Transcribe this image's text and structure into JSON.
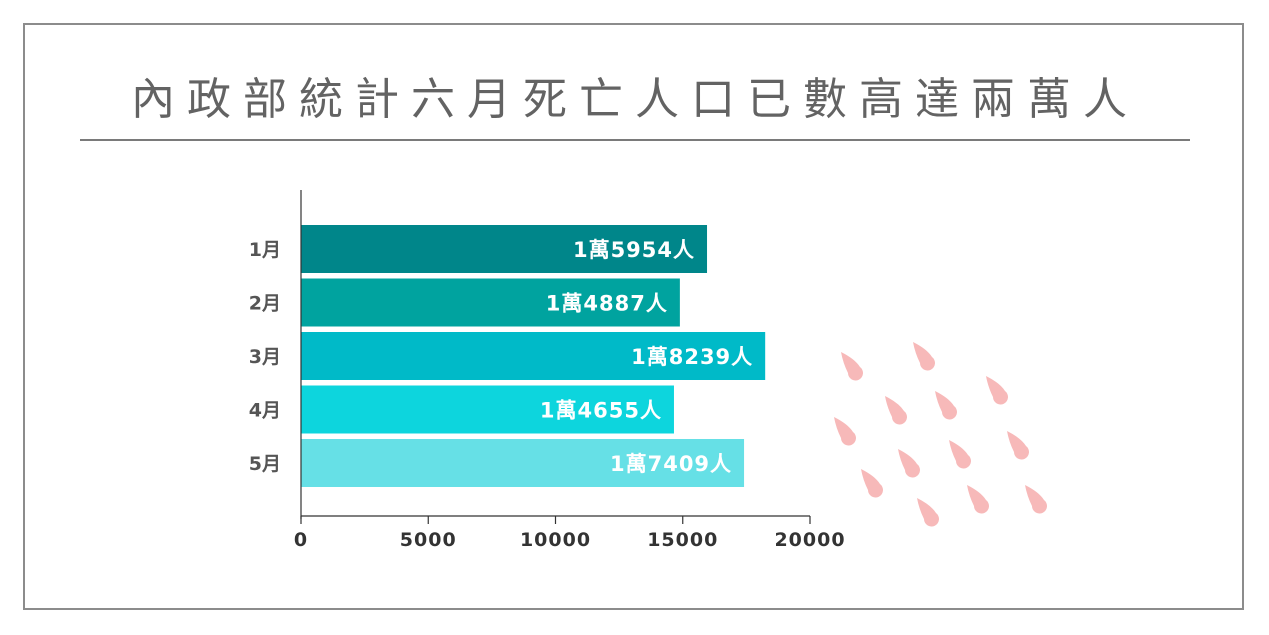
{
  "title": "內政部統計六月死亡人口已數高達兩萬人",
  "chart_data": {
    "type": "bar",
    "orientation": "horizontal",
    "categories": [
      "1月",
      "2月",
      "3月",
      "4月",
      "5月"
    ],
    "values": [
      15954,
      14887,
      18239,
      14655,
      17409
    ],
    "data_labels": [
      "1萬5954人",
      "1萬4887人",
      "1萬8239人",
      "1萬4655人",
      "1萬7409人"
    ],
    "bar_colors": [
      "#00868a",
      "#00a39f",
      "#00bac8",
      "#0dd5dd",
      "#66e0e6"
    ],
    "xlim": [
      0,
      20000
    ],
    "x_ticks": [
      0,
      5000,
      10000,
      15000,
      20000
    ],
    "x_tick_labels": [
      "0",
      "5000",
      "10000",
      "15000",
      "20000"
    ],
    "grid": false,
    "legend": "none"
  },
  "decoration": {
    "icon": "raindrop-icon",
    "color": "#f7b9b9"
  },
  "colors": {
    "title": "#636363",
    "frame": "#8c8c8c",
    "axis": "#333333"
  }
}
